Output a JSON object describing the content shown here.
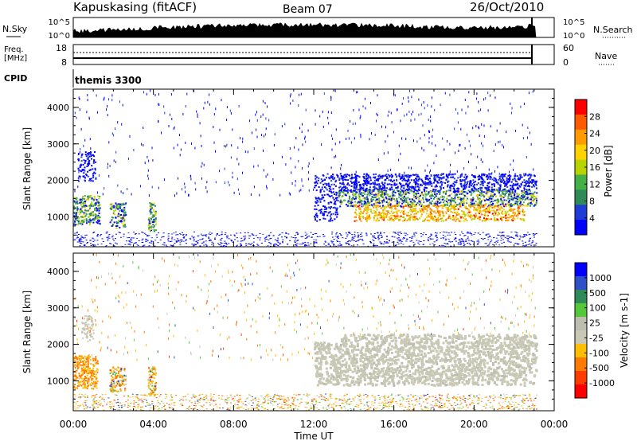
{
  "header": {
    "station": "Kapuskasing (fitACF)",
    "beam": "Beam 07",
    "date": "26/Oct/2010"
  },
  "strip_labels": {
    "nsky": "N.Sky",
    "nsearch": "N.Search",
    "freq_top": "Freq.",
    "freq_unit": "[MHz]",
    "nave": "Nave",
    "cpid": "CPID",
    "cpid_value": "themis 3300"
  },
  "colors": {
    "power": [
      "#0000ff",
      "#1e3cd6",
      "#2e8b57",
      "#45b045",
      "#b8d400",
      "#ffd200",
      "#ff9b00",
      "#ff5a00",
      "#ff0000"
    ],
    "velocity": [
      "#0000ff",
      "#3050c8",
      "#2e8b57",
      "#55c83a",
      "#bdbdb0",
      "#c8c8b4",
      "#ffbe00",
      "#ff7a00",
      "#ff3c00",
      "#ff0000"
    ]
  },
  "chart_data": [
    {
      "type": "line",
      "name": "nsky-strip",
      "ylabel": "N.Sky",
      "y2label": "N.Search",
      "ticks_left": [
        "10^5",
        "10^0"
      ],
      "ticks_right": [
        "10^5",
        "10^0"
      ],
      "x_range_hours": [
        0,
        24
      ],
      "data_end_hour": 23.1
    },
    {
      "type": "line",
      "name": "freq-strip",
      "ylabel": "Freq. [MHz]",
      "y2label": "Nave",
      "ticks_left": [
        "18",
        "8"
      ],
      "ticks_right": [
        "60",
        "0"
      ],
      "freq_mhz": 10.5,
      "nave": 20,
      "data_end_hour": 23.1
    },
    {
      "type": "heatmap",
      "name": "power-panel",
      "ylabel": "Slant Range [km]",
      "yticks": [
        "1000",
        "2000",
        "3000",
        "4000"
      ],
      "ylim": [
        180,
        4500
      ],
      "colorbar_label": "Power [dB]",
      "colorbar_ticks": [
        "4",
        "8",
        "12",
        "16",
        "20",
        "24",
        "28"
      ],
      "clim": [
        0,
        30
      ],
      "data_end_hour": 23.1
    },
    {
      "type": "heatmap",
      "name": "velocity-panel",
      "ylabel": "Slant Range [km]",
      "yticks": [
        "1000",
        "2000",
        "3000",
        "4000"
      ],
      "ylim": [
        180,
        4500
      ],
      "colorbar_label": "Velocity [m s-1]",
      "colorbar_ticks": [
        "1000",
        "500",
        "100",
        "25",
        "-25",
        "-100",
        "-500",
        "-1000"
      ],
      "data_end_hour": 23.1
    }
  ],
  "xaxis": {
    "label": "Time UT",
    "ticks": [
      "00:00",
      "04:00",
      "08:00",
      "12:00",
      "16:00",
      "20:00",
      "00:00"
    ],
    "range_hours": [
      0,
      24
    ]
  }
}
